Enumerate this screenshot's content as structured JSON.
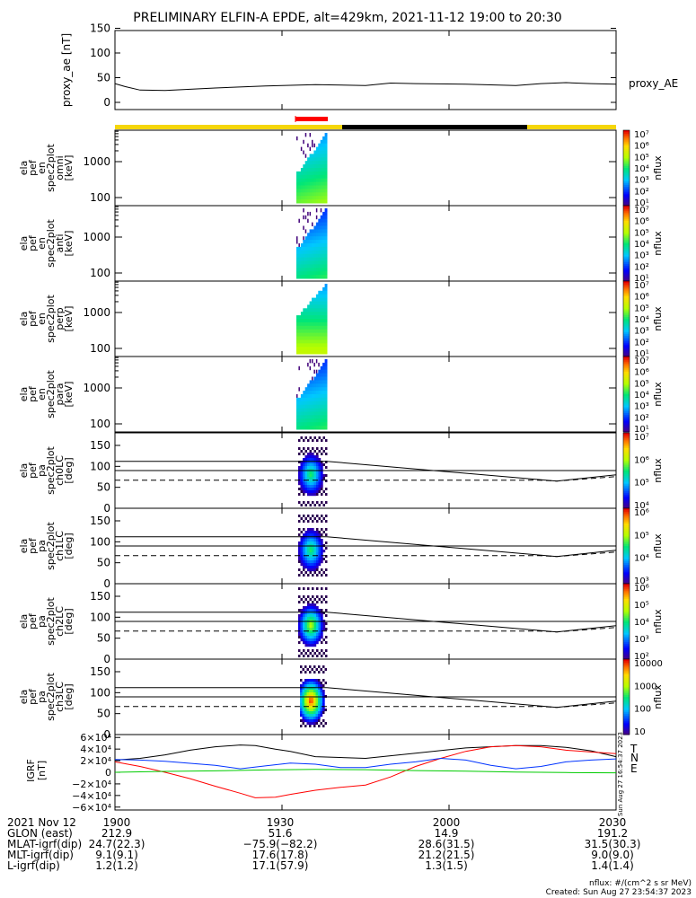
{
  "title": "PRELIMINARY ELFIN-A EPDE, alt=429km, 2021-11-12 19:00 to 20:30",
  "colors": {
    "yellow": "#f5d60a",
    "black": "#000000",
    "red": "#ff0000",
    "blue": "#0033ff",
    "green": "#00cc00"
  },
  "chart_data": [
    {
      "type": "line",
      "ylabel": "proxy_ae [nT]",
      "yticks": [
        "150",
        "100",
        "50",
        "0"
      ],
      "ylim": [
        0,
        160
      ],
      "series": [
        {
          "name": "proxy_AE",
          "x": [
            0,
            0.02,
            0.05,
            0.1,
            0.2,
            0.3,
            0.4,
            0.5,
            0.55,
            0.6,
            0.7,
            0.8,
            0.85,
            0.9,
            0.95,
            1.0
          ],
          "values": [
            38,
            32,
            25,
            24,
            29,
            33,
            36,
            34,
            39,
            38,
            37,
            34,
            38,
            40,
            38,
            37
          ]
        }
      ],
      "label": "proxy_AE"
    },
    {
      "type": "heatmap",
      "ylabel_lines": [
        "ela",
        "pef",
        "en",
        "spec2plot",
        "omni",
        "[keV]"
      ],
      "yticks": [
        "1000",
        "100"
      ],
      "cbar_ticks": [
        "10⁷",
        "10⁶",
        "10⁵",
        "10⁴",
        "10³",
        "10²",
        "10¹"
      ],
      "zlabel": "nflux"
    },
    {
      "type": "heatmap",
      "ylabel_lines": [
        "ela",
        "pef",
        "en",
        "spec2plot",
        "anti",
        "[keV]"
      ],
      "yticks": [
        "1000",
        "100"
      ],
      "cbar_ticks": [
        "10⁷",
        "10⁶",
        "10⁵",
        "10⁴",
        "10³",
        "10²",
        "10¹"
      ],
      "zlabel": "nflux"
    },
    {
      "type": "heatmap",
      "ylabel_lines": [
        "ela",
        "pef",
        "en",
        "spec2plot",
        "perp",
        "[keV]"
      ],
      "yticks": [
        "1000",
        "100"
      ],
      "cbar_ticks": [
        "10⁷",
        "10⁶",
        "10⁵",
        "10⁴",
        "10³",
        "10²",
        "10¹"
      ],
      "zlabel": "nflux"
    },
    {
      "type": "heatmap",
      "ylabel_lines": [
        "ela",
        "pef",
        "en",
        "spec2plot",
        "para",
        "[keV]"
      ],
      "yticks": [
        "1000",
        "100"
      ],
      "cbar_ticks": [
        "10⁷",
        "10⁶",
        "10⁵",
        "10⁴",
        "10³",
        "10²",
        "10¹"
      ],
      "zlabel": "nflux"
    },
    {
      "type": "heatmap",
      "ylabel_lines": [
        "ela",
        "pef",
        "pa",
        "spec2plot",
        "ch0LC",
        "[deg]"
      ],
      "yticks": [
        "150",
        "100",
        "50",
        "0"
      ],
      "cbar_ticks": [
        "10⁷",
        "10⁶",
        "10⁵",
        "10⁴"
      ],
      "zlabel": "nflux"
    },
    {
      "type": "heatmap",
      "ylabel_lines": [
        "ela",
        "pef",
        "pa",
        "spec2plot",
        "ch1LC",
        "[deg]"
      ],
      "yticks": [
        "150",
        "100",
        "50",
        "0"
      ],
      "cbar_ticks": [
        "10⁶",
        "10⁵",
        "10⁴",
        "10³"
      ],
      "zlabel": "nflux"
    },
    {
      "type": "heatmap",
      "ylabel_lines": [
        "ela",
        "pef",
        "pa",
        "spec2plot",
        "ch2LC",
        "[deg]"
      ],
      "yticks": [
        "150",
        "100",
        "50",
        "0"
      ],
      "cbar_ticks": [
        "10⁶",
        "10⁵",
        "10⁴",
        "10³",
        "10²"
      ],
      "zlabel": "nflux"
    },
    {
      "type": "heatmap",
      "ylabel_lines": [
        "ela",
        "pef",
        "pa",
        "spec2plot",
        "ch3LC",
        "[deg]"
      ],
      "yticks": [
        "150",
        "100",
        "50",
        "0"
      ],
      "cbar_ticks": [
        "10000",
        "1000",
        "100",
        "10"
      ],
      "zlabel": "nflux"
    },
    {
      "type": "line",
      "ylabel_lines": [
        "IGRF",
        "[nT]"
      ],
      "yticks": [
        "6×10⁴",
        "4×10⁴",
        "2×10⁴",
        "0",
        "−2×10⁴",
        "−4×10⁴",
        "−6×10⁴"
      ],
      "ylim": [
        -65000,
        65000
      ],
      "legend": [
        "T",
        "N",
        "E"
      ],
      "series": [
        {
          "name": "T",
          "x": [
            0,
            0.05,
            0.1,
            0.15,
            0.2,
            0.25,
            0.28,
            0.32,
            0.35,
            0.4,
            0.5,
            0.6,
            0.7,
            0.8,
            0.85,
            0.9,
            0.95,
            1.0
          ],
          "values": [
            21000,
            24000,
            30000,
            38000,
            44000,
            47000,
            46000,
            40000,
            36000,
            27000,
            24000,
            33000,
            42000,
            46000,
            46000,
            43000,
            37000,
            27000
          ]
        },
        {
          "name": "N",
          "x": [
            0,
            0.05,
            0.1,
            0.15,
            0.2,
            0.25,
            0.28,
            0.32,
            0.35,
            0.4,
            0.45,
            0.5,
            0.55,
            0.6,
            0.65,
            0.7,
            0.75,
            0.8,
            0.85,
            0.9,
            0.95,
            1.0
          ],
          "values": [
            18000,
            10000,
            0,
            -11000,
            -24000,
            -36000,
            -44000,
            -43000,
            -38000,
            -31000,
            -26000,
            -22000,
            -8000,
            10000,
            24000,
            36000,
            44000,
            46000,
            44000,
            38000,
            35000,
            32000
          ]
        },
        {
          "name": "E",
          "x": [
            0,
            0.05,
            0.1,
            0.2,
            0.25,
            0.3,
            0.35,
            0.4,
            0.45,
            0.5,
            0.55,
            0.6,
            0.65,
            0.7,
            0.75,
            0.8,
            0.85,
            0.9,
            0.95,
            1.0
          ],
          "values": [
            22000,
            21000,
            19000,
            12000,
            6000,
            11000,
            16000,
            14000,
            8000,
            8000,
            14000,
            18000,
            24000,
            21000,
            12000,
            6000,
            10000,
            18000,
            21000,
            23000
          ]
        },
        {
          "name": "E0",
          "x": [
            0,
            0.1,
            0.2,
            0.3,
            0.4,
            0.5,
            0.6,
            0.7,
            0.8,
            0.9,
            1.0
          ],
          "values": [
            0,
            1500,
            2500,
            4000,
            5000,
            4500,
            3000,
            2000,
            500,
            -500,
            -1000
          ]
        }
      ]
    }
  ],
  "xaxis": {
    "ticks": [
      "1900",
      "1930",
      "2000",
      "2030"
    ]
  },
  "footer": {
    "date": "2021 Nov 12",
    "rows": [
      {
        "label": "GLON (east)",
        "values": [
          "212.9",
          "51.6",
          "14.9",
          "191.2"
        ]
      },
      {
        "label": "MLAT-igrf(dip)",
        "values": [
          "24.7(22.3)",
          "−75.9(−82.2)",
          "28.6(31.5)",
          "31.5(30.3)"
        ]
      },
      {
        "label": "MLT-igrf(dip)",
        "values": [
          "9.1(9.1)",
          "17.6(17.8)",
          "21.2(21.5)",
          "9.0(9.0)"
        ]
      },
      {
        "label": "L-igrf(dip)",
        "values": [
          "1.2(1.2)",
          "17.1(57.9)",
          "1.3(1.5)",
          "1.4(1.4)"
        ]
      }
    ],
    "units": "nflux: #/(cm^2 s sr MeV)",
    "created": "Created: Sun Aug 27 23:54:37 2023",
    "side_stamp": "Sun Aug 27 16:54:37 2023"
  }
}
